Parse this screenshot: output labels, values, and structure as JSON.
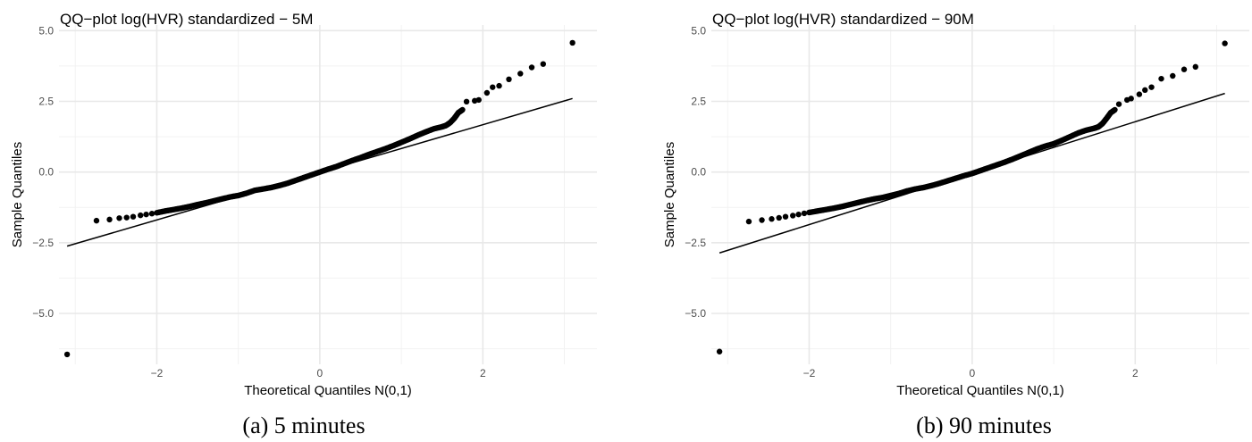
{
  "chart_data": [
    {
      "type": "scatter",
      "title": "QQ−plot log(HVR) standardized − 5M",
      "xlabel": "Theoretical Quantiles N(0,1)",
      "ylabel": "Sample Quantiles",
      "caption": "(a) 5 minutes",
      "xlim": [
        -3.2,
        3.4
      ],
      "ylim": [
        -6.8,
        5.2
      ],
      "x_ticks": [
        -2,
        0,
        2
      ],
      "x_tick_labels": [
        "−2",
        "0",
        "2"
      ],
      "y_ticks": [
        -5,
        -2.5,
        0,
        2.5,
        5
      ],
      "y_tick_labels": [
        "−5.0",
        "−2.5",
        "0.0",
        "2.5",
        "5.0"
      ],
      "grid": true,
      "reference_line": {
        "x": [
          -3.1,
          3.1
        ],
        "y": [
          -2.62,
          2.6
        ]
      },
      "points": {
        "x": [
          -3.1,
          -2.74,
          -2.58,
          -2.46,
          -2.37,
          -2.29,
          -2.2,
          -2.13,
          -2.06,
          -2.0,
          -1.9,
          -1.8,
          -1.7,
          -1.6,
          -1.5,
          -1.4,
          -1.3,
          -1.2,
          -1.1,
          -1.0,
          -0.9,
          -0.8,
          -0.7,
          -0.6,
          -0.5,
          -0.4,
          -0.3,
          -0.2,
          -0.1,
          0.0,
          0.1,
          0.2,
          0.3,
          0.4,
          0.5,
          0.6,
          0.7,
          0.8,
          0.9,
          1.0,
          1.1,
          1.2,
          1.3,
          1.4,
          1.5,
          1.55,
          1.6,
          1.65,
          1.7,
          1.75,
          1.8,
          1.9,
          1.95,
          2.05,
          2.12,
          2.2,
          2.32,
          2.46,
          2.6,
          2.74,
          3.1
        ],
        "y": [
          -6.45,
          -1.72,
          -1.68,
          -1.63,
          -1.61,
          -1.58,
          -1.53,
          -1.5,
          -1.47,
          -1.44,
          -1.38,
          -1.33,
          -1.28,
          -1.22,
          -1.15,
          -1.09,
          -1.02,
          -0.95,
          -0.88,
          -0.83,
          -0.75,
          -0.65,
          -0.6,
          -0.55,
          -0.48,
          -0.4,
          -0.3,
          -0.2,
          -0.1,
          0.0,
          0.1,
          0.19,
          0.3,
          0.41,
          0.51,
          0.62,
          0.72,
          0.82,
          0.93,
          1.05,
          1.17,
          1.3,
          1.42,
          1.53,
          1.6,
          1.65,
          1.75,
          1.9,
          2.1,
          2.2,
          2.49,
          2.52,
          2.55,
          2.8,
          3.0,
          3.05,
          3.28,
          3.48,
          3.7,
          3.82,
          4.57
        ]
      }
    },
    {
      "type": "scatter",
      "title": "QQ−plot log(HVR) standardized − 90M",
      "xlabel": "Theoretical Quantiles N(0,1)",
      "ylabel": "Sample Quantiles",
      "caption": "(b) 90 minutes",
      "xlim": [
        -3.2,
        3.4
      ],
      "ylim": [
        -6.8,
        5.2
      ],
      "x_ticks": [
        -2,
        0,
        2
      ],
      "x_tick_labels": [
        "−2",
        "0",
        "2"
      ],
      "y_ticks": [
        -5,
        -2.5,
        0,
        2.5,
        5
      ],
      "y_tick_labels": [
        "−5.0",
        "−2.5",
        "0.0",
        "2.5",
        "5.0"
      ],
      "grid": true,
      "reference_line": {
        "x": [
          -3.1,
          3.1
        ],
        "y": [
          -2.86,
          2.78
        ]
      },
      "points": {
        "x": [
          -3.1,
          -2.74,
          -2.58,
          -2.46,
          -2.37,
          -2.29,
          -2.2,
          -2.13,
          -2.06,
          -2.0,
          -1.9,
          -1.8,
          -1.7,
          -1.6,
          -1.5,
          -1.4,
          -1.3,
          -1.2,
          -1.1,
          -1.0,
          -0.9,
          -0.8,
          -0.7,
          -0.6,
          -0.5,
          -0.4,
          -0.3,
          -0.2,
          -0.1,
          0.0,
          0.1,
          0.2,
          0.3,
          0.4,
          0.5,
          0.6,
          0.7,
          0.8,
          0.9,
          1.0,
          1.1,
          1.2,
          1.3,
          1.4,
          1.5,
          1.55,
          1.6,
          1.65,
          1.7,
          1.75,
          1.8,
          1.9,
          1.95,
          2.05,
          2.12,
          2.2,
          2.32,
          2.46,
          2.6,
          2.74,
          3.1
        ],
        "y": [
          -6.35,
          -1.75,
          -1.7,
          -1.66,
          -1.62,
          -1.58,
          -1.54,
          -1.5,
          -1.46,
          -1.43,
          -1.38,
          -1.33,
          -1.28,
          -1.22,
          -1.15,
          -1.08,
          -1.01,
          -0.95,
          -0.9,
          -0.83,
          -0.76,
          -0.67,
          -0.6,
          -0.55,
          -0.48,
          -0.4,
          -0.31,
          -0.22,
          -0.13,
          -0.05,
          0.05,
          0.15,
          0.25,
          0.35,
          0.46,
          0.58,
          0.7,
          0.82,
          0.92,
          1.0,
          1.12,
          1.25,
          1.38,
          1.48,
          1.55,
          1.6,
          1.72,
          1.9,
          2.1,
          2.2,
          2.4,
          2.55,
          2.6,
          2.75,
          2.9,
          3.0,
          3.3,
          3.4,
          3.63,
          3.72,
          4.55
        ]
      }
    }
  ]
}
